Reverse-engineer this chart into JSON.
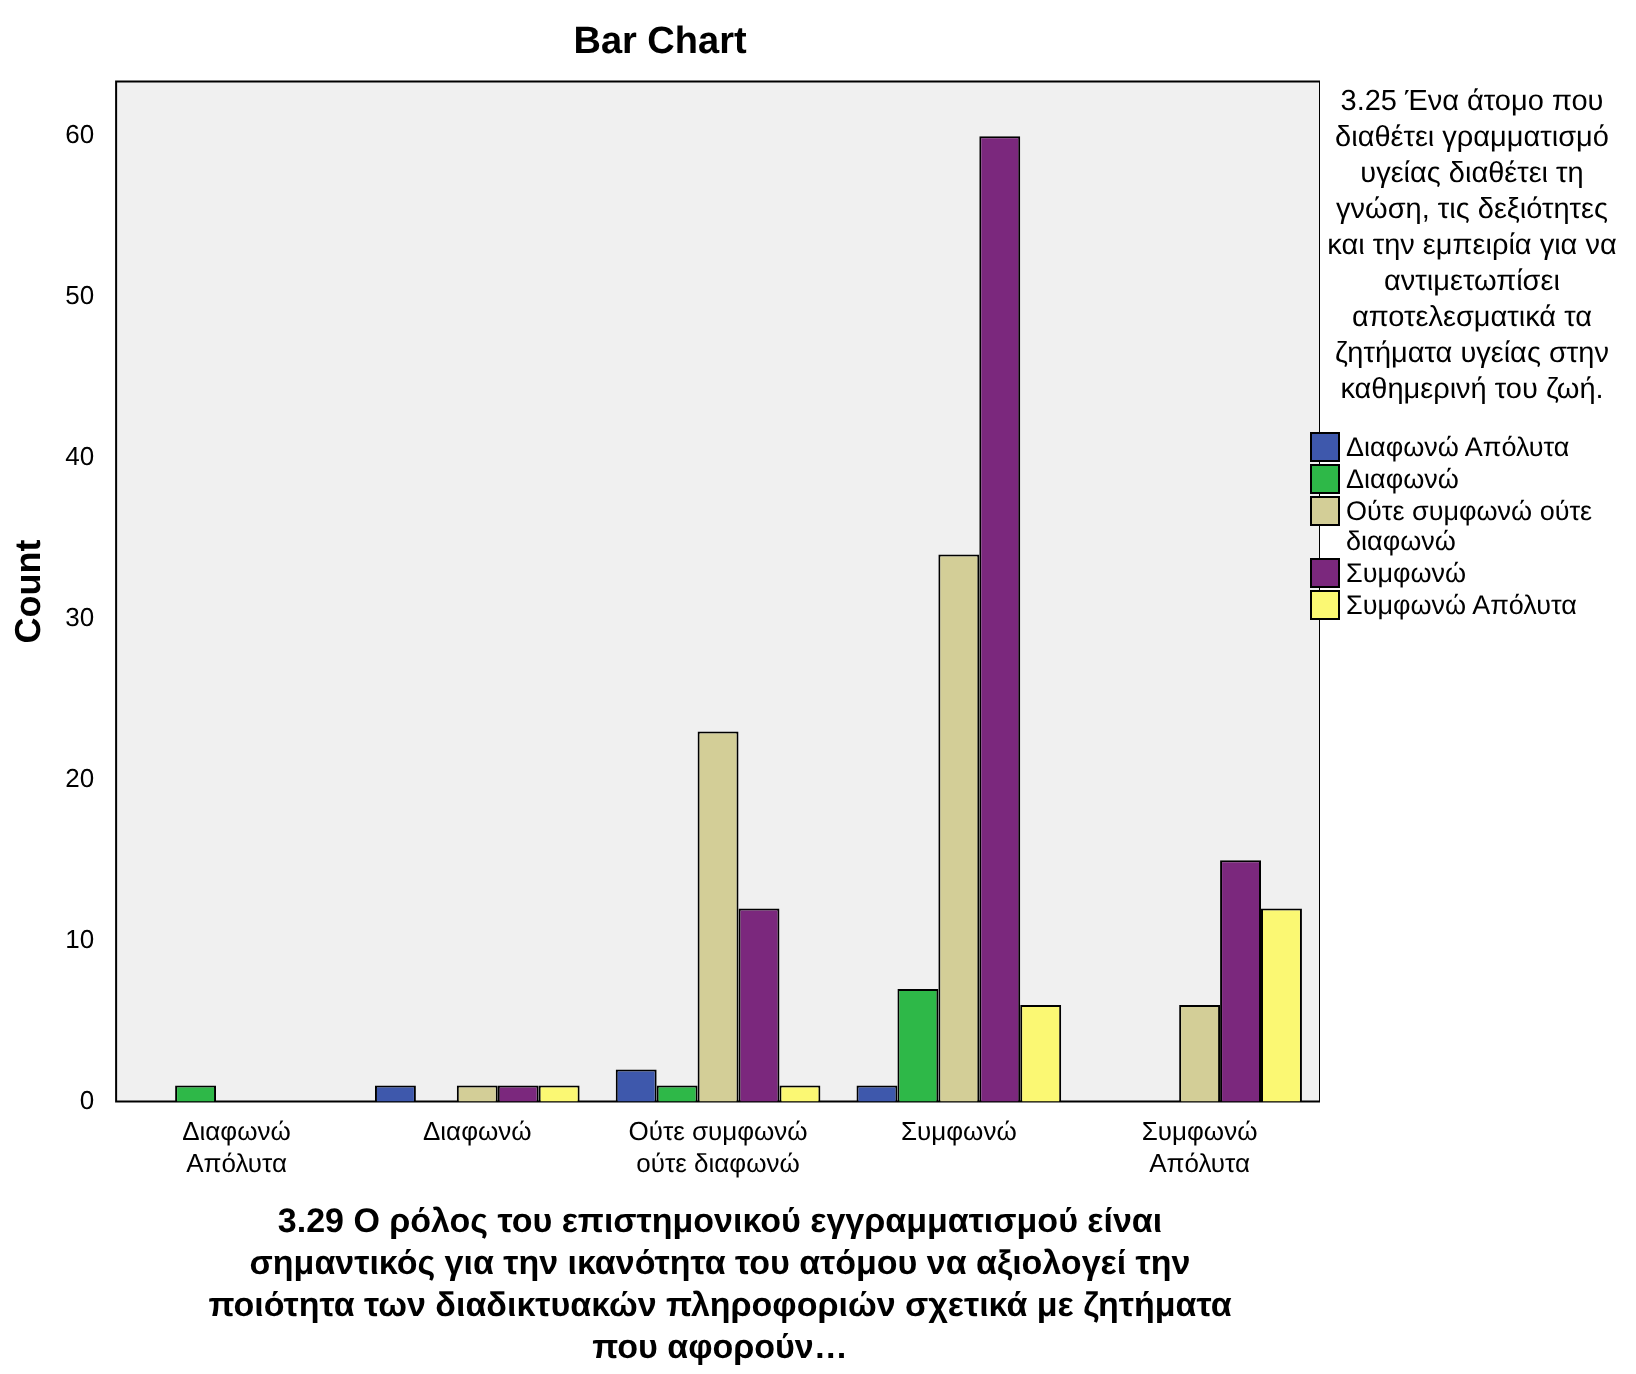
{
  "chart_data": {
    "type": "bar",
    "title": "Bar Chart",
    "xlabel": "3.29 Ο ρόλος του επιστημονικού εγγραμματισμού είναι σημαντικός για την ικανότητα του ατόμου να αξιολογεί την ποιότητα των διαδικτυακών πληροφοριών σχετικά με ζητήματα που αφορούν…",
    "ylabel": "Count",
    "legend_title": "3.25 Ένα άτομο που διαθέτει γραμματισμό υγείας διαθέτει τη γνώση, τις δεξιότητες και την εμπειρία για να αντιμετωπίσει αποτελεσματικά τα ζητήματα υγείας στην καθημερινή του ζωή.",
    "categories": [
      "Διαφωνώ Απόλυτα",
      "Διαφωνώ",
      "Ούτε συμφωνώ ούτε διαφωνώ",
      "Συμφωνώ",
      "Συμφωνώ Απόλυτα"
    ],
    "series": [
      {
        "name": "Διαφωνώ Απόλυτα",
        "color": "#3e58ac",
        "values": [
          null,
          1,
          2,
          1,
          null
        ]
      },
      {
        "name": "Διαφωνώ",
        "color": "#2eb848",
        "values": [
          1,
          null,
          1,
          7,
          null
        ]
      },
      {
        "name": "Ούτε συμφωνώ ούτε διαφωνώ",
        "color": "#d3ce97",
        "values": [
          null,
          1,
          23,
          34,
          6
        ]
      },
      {
        "name": "Συμφωνώ",
        "color": "#7b287d",
        "values": [
          null,
          1,
          12,
          60,
          15
        ]
      },
      {
        "name": "Συμφωνώ Απόλυτα",
        "color": "#fbf873",
        "values": [
          null,
          1,
          1,
          6,
          12
        ]
      }
    ],
    "ylim": [
      0,
      63.4
    ],
    "yticks": [
      0,
      10,
      20,
      30,
      40,
      50,
      60
    ],
    "grid": false,
    "legend": "right"
  }
}
